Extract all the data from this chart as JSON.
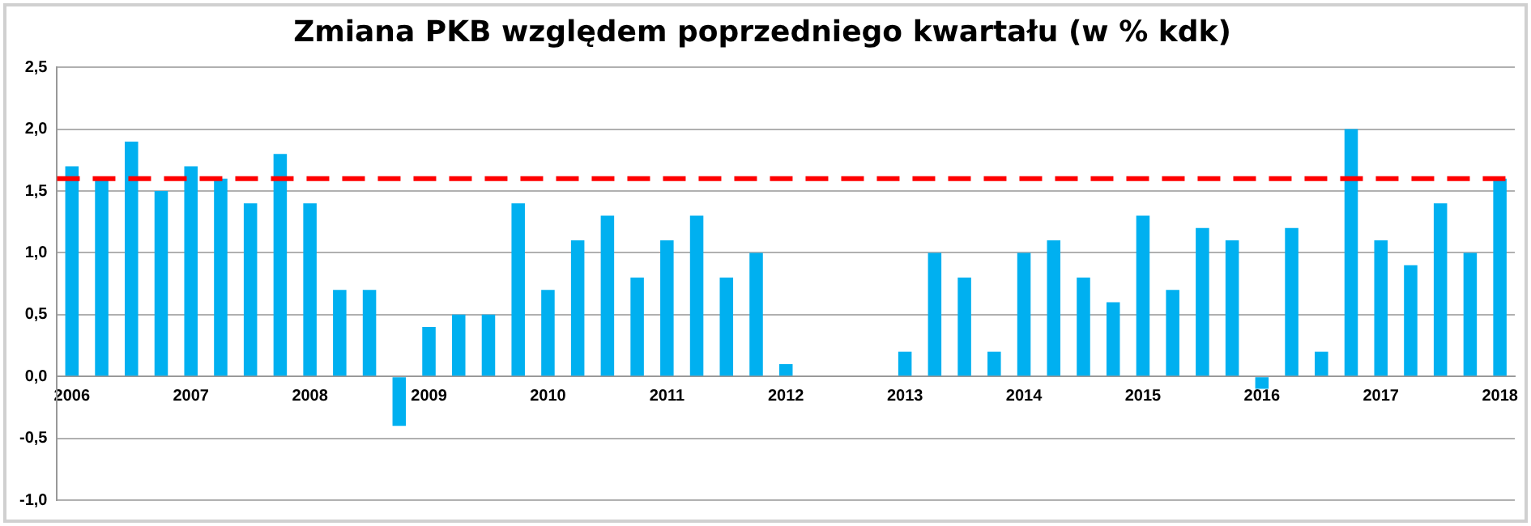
{
  "chart_data": {
    "type": "bar",
    "title": "Zmiana PKB względem poprzedniego kwartału (w % kdk)",
    "categories": [
      "2006",
      null,
      null,
      null,
      "2007",
      null,
      null,
      null,
      "2008",
      null,
      null,
      null,
      "2009",
      null,
      null,
      null,
      "2010",
      null,
      null,
      null,
      "2011",
      null,
      null,
      null,
      "2012",
      null,
      null,
      null,
      "2013",
      null,
      null,
      null,
      "2014",
      null,
      null,
      null,
      "2015",
      null,
      null,
      null,
      "2016",
      null,
      null,
      null,
      "2017",
      null,
      null,
      null,
      "2018"
    ],
    "values": [
      1.7,
      1.6,
      1.9,
      1.5,
      1.7,
      1.6,
      1.4,
      1.8,
      1.4,
      0.7,
      0.7,
      -0.4,
      0.4,
      0.5,
      0.5,
      1.4,
      0.7,
      1.1,
      1.3,
      0.8,
      1.1,
      1.3,
      0.8,
      1.0,
      0.1,
      null,
      null,
      null,
      0.2,
      1.0,
      0.8,
      0.2,
      1.0,
      1.1,
      0.8,
      0.6,
      1.3,
      0.7,
      1.2,
      1.1,
      -0.1,
      1.2,
      0.2,
      2.0,
      1.1,
      0.9,
      1.4,
      1.0,
      1.6
    ],
    "color": "#00b0f0",
    "ylim": [
      -1.0,
      2.5
    ],
    "yticks": [
      {
        "value": -1.0,
        "label": "-1,0"
      },
      {
        "value": -0.5,
        "label": "-0,5"
      },
      {
        "value": 0,
        "label": "0,0"
      },
      {
        "value": 0.5,
        "label": "0,5"
      },
      {
        "value": 1.0,
        "label": "1,0"
      },
      {
        "value": 1.5,
        "label": "1,5"
      },
      {
        "value": 2.0,
        "label": "2,0"
      },
      {
        "value": 2.5,
        "label": "2,5"
      }
    ],
    "grid": "y",
    "ref_lines": [
      {
        "axis": "y",
        "value": 1.6,
        "color": "#ff0000",
        "line_style": "dashed"
      }
    ]
  }
}
